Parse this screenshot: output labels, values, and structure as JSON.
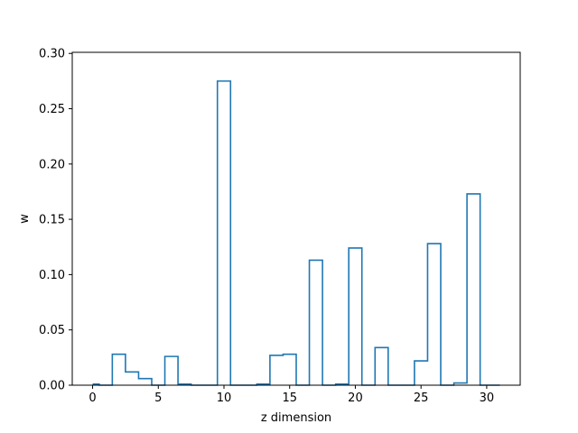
{
  "chart_data": {
    "type": "step",
    "xlabel": "z dimension",
    "ylabel": "w",
    "xlim": [
      -1.55,
      32.55
    ],
    "ylim": [
      0,
      0.301
    ],
    "x_ticks": [
      0,
      5,
      10,
      15,
      20,
      25,
      30
    ],
    "x_tick_labels": [
      "0",
      "5",
      "10",
      "15",
      "20",
      "25",
      "30"
    ],
    "y_ticks": [
      0,
      0.05,
      0.1,
      0.15,
      0.2,
      0.25,
      0.3
    ],
    "y_tick_labels": [
      "0.00",
      "0.05",
      "0.10",
      "0.15",
      "0.20",
      "0.25",
      "0.30"
    ],
    "grid": false,
    "line_color": "#1f77b4",
    "x": [
      0,
      1,
      2,
      3,
      4,
      5,
      6,
      7,
      8,
      9,
      10,
      11,
      12,
      13,
      14,
      15,
      16,
      17,
      18,
      19,
      20,
      21,
      22,
      23,
      24,
      25,
      26,
      27,
      28,
      29,
      30,
      31
    ],
    "values": [
      0.001,
      0.0,
      0.028,
      0.012,
      0.006,
      0.0,
      0.026,
      0.001,
      0.0,
      0.0,
      0.275,
      0.0,
      0.0,
      0.001,
      0.027,
      0.028,
      0.0,
      0.113,
      0.0,
      0.001,
      0.124,
      0.0,
      0.034,
      0.0,
      0.0,
      0.022,
      0.128,
      0.0,
      0.002,
      0.173,
      0.0,
      0.0
    ]
  }
}
